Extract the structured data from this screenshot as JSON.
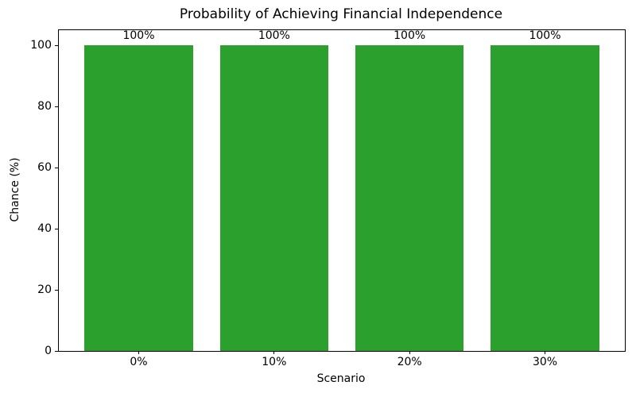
{
  "chart_data": {
    "type": "bar",
    "title": "Probability of Achieving Financial Independence",
    "xlabel": "Scenario",
    "ylabel": "Chance (%)",
    "categories": [
      "0%",
      "10%",
      "20%",
      "30%"
    ],
    "values": [
      100,
      100,
      100,
      100
    ],
    "bar_labels": [
      "100%",
      "100%",
      "100%",
      "100%"
    ],
    "yticks": [
      0,
      20,
      40,
      60,
      80,
      100
    ],
    "ylim": [
      0,
      105
    ],
    "bar_color": "#2ca02c",
    "bar_width": 0.8,
    "grid": false,
    "legend": null,
    "spines": "full-box"
  }
}
